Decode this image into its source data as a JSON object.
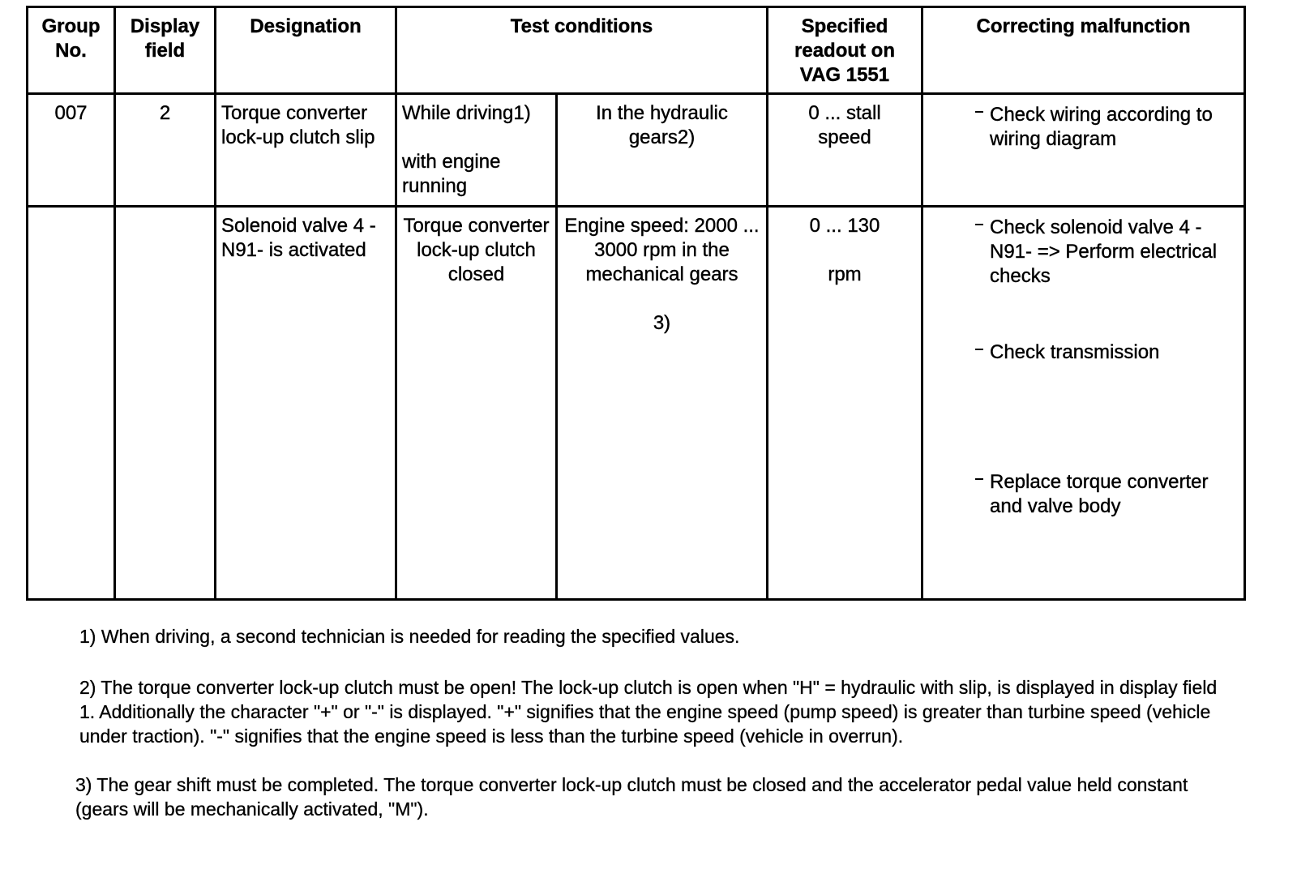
{
  "headers": {
    "group_no": "Group No.",
    "display_field": "Display field",
    "designation": "Designation",
    "test_conditions": "Test conditions",
    "specified_readout": "Specified readout on VAG 1551",
    "correcting": "Correcting malfunction"
  },
  "rows": [
    {
      "group": "007",
      "field": "2",
      "designation": "Torque converter lock-up clutch slip",
      "condition_a": [
        "While driving1)",
        "with engine running"
      ],
      "condition_b": [
        "In the hydraulic gears2)"
      ],
      "readout": [
        "0 ... stall speed"
      ],
      "actions": [
        "Check wiring according to wiring diagram"
      ]
    },
    {
      "group": "",
      "field": "",
      "designation": "Solenoid valve 4 -N91- is activated",
      "condition_a": [
        "Torque converter lock-up clutch closed"
      ],
      "condition_b": [
        "Engine speed: 2000 ... 3000 rpm in the mechanical gears",
        "3)"
      ],
      "readout": [
        "0 ... 130",
        "rpm"
      ],
      "actions": [
        "Check solenoid valve 4 -N91- => Perform electrical checks",
        "Check transmission",
        "Replace torque converter and valve body"
      ]
    }
  ],
  "footnotes": [
    "1) When driving, a second technician is needed for reading the specified values.",
    "2) The torque converter lock-up clutch must be open! The lock-up clutch is open when \"H\" = hydraulic with slip, is displayed in display field 1. Additionally the character \"+\" or \"-\" is displayed. \"+\" signifies that the engine speed (pump speed) is greater than turbine speed (vehicle under traction). \"-\" signifies that the engine speed is less than the turbine speed (vehicle in overrun).",
    "3) The gear shift must be completed. The torque converter lock-up clutch must be closed and the accelerator pedal value held constant (gears will be mechanically activated, \"M\")."
  ]
}
